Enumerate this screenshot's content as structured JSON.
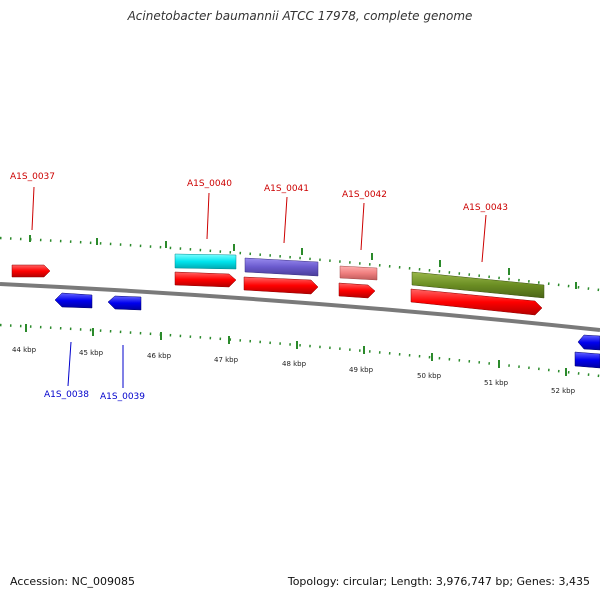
{
  "title": "Acinetobacter baumannii ATCC 17978, complete genome",
  "footer": {
    "accession": "Accession: NC_009085",
    "summary": "Topology: circular; Length: 3,976,747 bp; Genes: 3,435"
  },
  "colors": {
    "cds": "#ff0000",
    "forward_label": "#cc0000",
    "reverse_gene": "#0000ee",
    "reverse_label": "#0000cc",
    "tick": "#2b8a2b",
    "backbone": "#7a7a7a",
    "feature_cyan": "#00e5ee",
    "feature_slateblue": "#6a5acd",
    "feature_pink": "#f08080",
    "feature_olive": "#6b8e23"
  },
  "kbp_labels": [
    "44 kbp",
    "45 kbp",
    "46 kbp",
    "47 kbp",
    "48 kbp",
    "49 kbp",
    "50 kbp",
    "51 kbp",
    "52 kbp"
  ],
  "forward_genes": [
    {
      "name": "A1S_0037",
      "label": "A1S_0037"
    },
    {
      "name": "A1S_0040",
      "label": "A1S_0040"
    },
    {
      "name": "A1S_0041",
      "label": "A1S_0041"
    },
    {
      "name": "A1S_0042",
      "label": "A1S_0042"
    },
    {
      "name": "A1S_0043",
      "label": "A1S_0043"
    }
  ],
  "reverse_genes": [
    {
      "name": "A1S_0038",
      "label": "A1S_0038"
    },
    {
      "name": "A1S_0039",
      "label": "A1S_0039"
    },
    {
      "name": "unlabeled",
      "label": ""
    }
  ]
}
